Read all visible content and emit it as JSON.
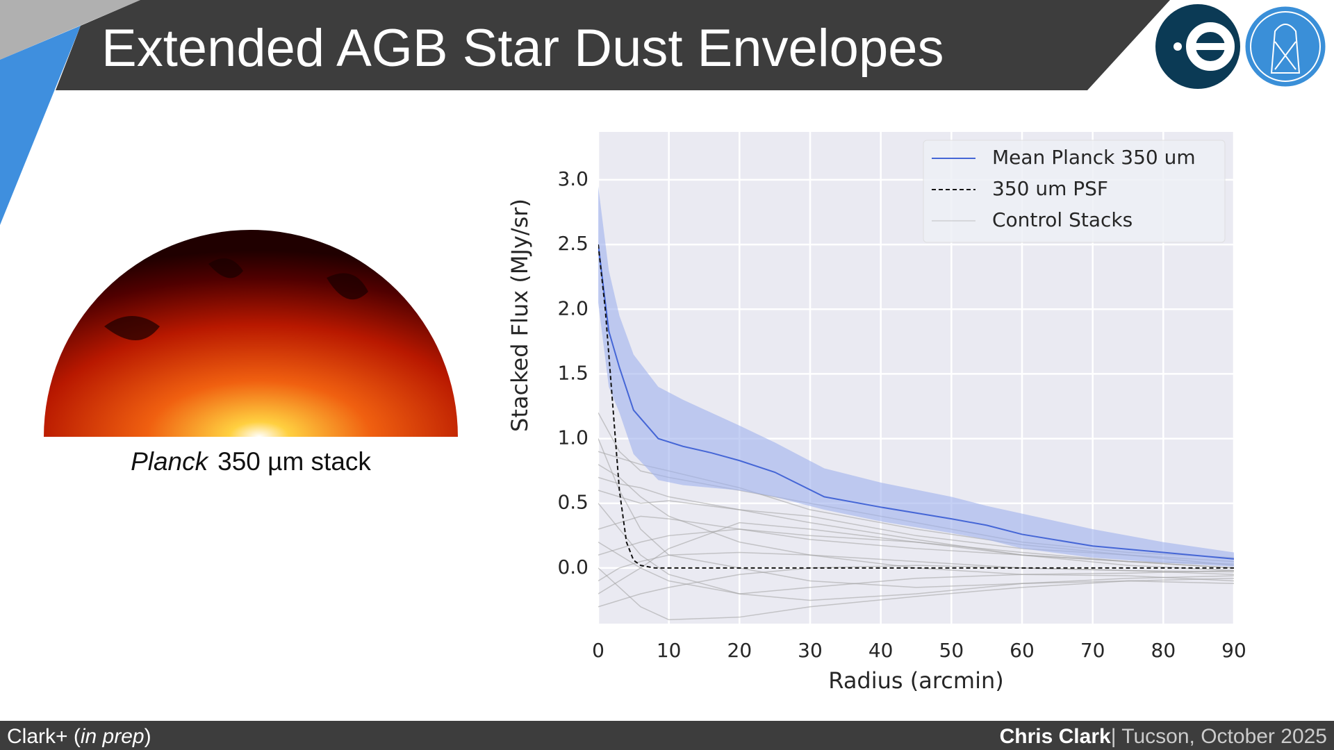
{
  "slide": {
    "title": "Extended AGB Star Dust Envelopes",
    "caption": {
      "italic": "Planck",
      "text": "350 µm stack"
    },
    "footer_left": [
      "Clark+ (",
      "in prep",
      ")"
    ],
    "footer_author": "Chris Clark",
    "footer_event": "| Tucson, October 2025"
  },
  "chart_data": {
    "type": "line",
    "xlabel": "Radius (arcmin)",
    "ylabel": "Stacked Flux (MJy/sr)",
    "xlim": [
      0,
      90
    ],
    "ylim": [
      -0.43,
      3.37
    ],
    "xticks": [
      0,
      10,
      20,
      30,
      40,
      50,
      60,
      70,
      80,
      90
    ],
    "yticks": [
      {
        "value": 0,
        "label": "0.0"
      },
      0.5,
      {
        "value": 1,
        "label": "1.0"
      },
      1.5,
      {
        "value": 2,
        "label": "2.0"
      },
      2.5,
      {
        "value": 3,
        "label": "3.0"
      }
    ],
    "grid": true,
    "legend": "upper right",
    "background": "#eaeaf2",
    "series": [
      {
        "name": "Mean Planck 350 um",
        "color": "#4566d6",
        "band_color": "#9fb1ec",
        "linestyle": "solid",
        "x": [
          0,
          1.5,
          3,
          5,
          8.5,
          12,
          16,
          20,
          25,
          32,
          40,
          50,
          55,
          60,
          70,
          80,
          90
        ],
        "values": [
          2.5,
          1.83,
          1.55,
          1.22,
          1.0,
          0.94,
          0.89,
          0.83,
          0.74,
          0.55,
          0.47,
          0.38,
          0.33,
          0.26,
          0.17,
          0.12,
          0.07
        ],
        "upper": [
          2.95,
          2.3,
          1.95,
          1.65,
          1.4,
          1.3,
          1.2,
          1.1,
          0.97,
          0.77,
          0.66,
          0.55,
          0.48,
          0.42,
          0.3,
          0.2,
          0.12
        ],
        "lower": [
          2.05,
          1.4,
          1.2,
          0.88,
          0.68,
          0.64,
          0.62,
          0.6,
          0.55,
          0.45,
          0.36,
          0.27,
          0.22,
          0.15,
          0.08,
          0.04,
          0.01
        ]
      },
      {
        "name": "350 um PSF",
        "color": "#111111",
        "linestyle": "dashed",
        "x": [
          0,
          1,
          2,
          3,
          4,
          5,
          6,
          8,
          20,
          40,
          60,
          90
        ],
        "values": [
          2.5,
          2.0,
          1.3,
          0.6,
          0.2,
          0.06,
          0.02,
          0.0,
          0.0,
          0.0,
          0.0,
          0.0
        ]
      },
      {
        "name": "Control Stacks",
        "color": "#a0a0a0",
        "linestyle": "solid",
        "x": [
          0,
          3,
          6,
          10,
          20,
          30,
          45,
          60,
          75,
          90
        ],
        "lines": [
          [
            1.2,
            0.9,
            0.75,
            0.7,
            0.6,
            0.5,
            0.35,
            0.2,
            0.12,
            0.08
          ],
          [
            0.9,
            0.85,
            0.8,
            0.75,
            0.62,
            0.45,
            0.3,
            0.18,
            0.1,
            0.05
          ],
          [
            0.6,
            0.55,
            0.5,
            0.52,
            0.45,
            0.4,
            0.25,
            0.15,
            0.1,
            0.02
          ],
          [
            0.3,
            0.35,
            0.4,
            0.38,
            0.3,
            0.25,
            0.2,
            0.12,
            0.05,
            0.0
          ],
          [
            0.1,
            0.15,
            0.2,
            0.25,
            0.3,
            0.22,
            0.15,
            0.1,
            0.05,
            0.03
          ],
          [
            -0.1,
            0.0,
            0.05,
            0.1,
            0.12,
            0.1,
            0.05,
            0.0,
            -0.02,
            -0.05
          ],
          [
            -0.3,
            -0.25,
            -0.2,
            -0.15,
            -0.05,
            0.0,
            0.02,
            0.0,
            -0.02,
            -0.03
          ],
          [
            0.5,
            0.3,
            0.1,
            -0.05,
            -0.2,
            -0.25,
            -0.2,
            -0.12,
            -0.08,
            -0.06
          ],
          [
            0.0,
            -0.15,
            -0.3,
            -0.4,
            -0.38,
            -0.3,
            -0.22,
            -0.15,
            -0.1,
            -0.08
          ],
          [
            0.8,
            0.7,
            0.55,
            0.4,
            0.2,
            0.1,
            0.0,
            -0.05,
            -0.06,
            -0.1
          ],
          [
            -0.2,
            -0.1,
            0.0,
            0.15,
            0.35,
            0.3,
            0.2,
            0.1,
            0.05,
            0.0
          ],
          [
            1.0,
            0.6,
            0.3,
            0.1,
            0.0,
            -0.1,
            -0.15,
            -0.12,
            -0.1,
            -0.12
          ],
          [
            0.2,
            0.1,
            0.0,
            -0.1,
            -0.2,
            -0.15,
            -0.08,
            -0.05,
            -0.04,
            -0.02
          ],
          [
            0.7,
            0.65,
            0.62,
            0.55,
            0.45,
            0.35,
            0.22,
            0.1,
            0.02,
            -0.02
          ]
        ]
      }
    ]
  }
}
